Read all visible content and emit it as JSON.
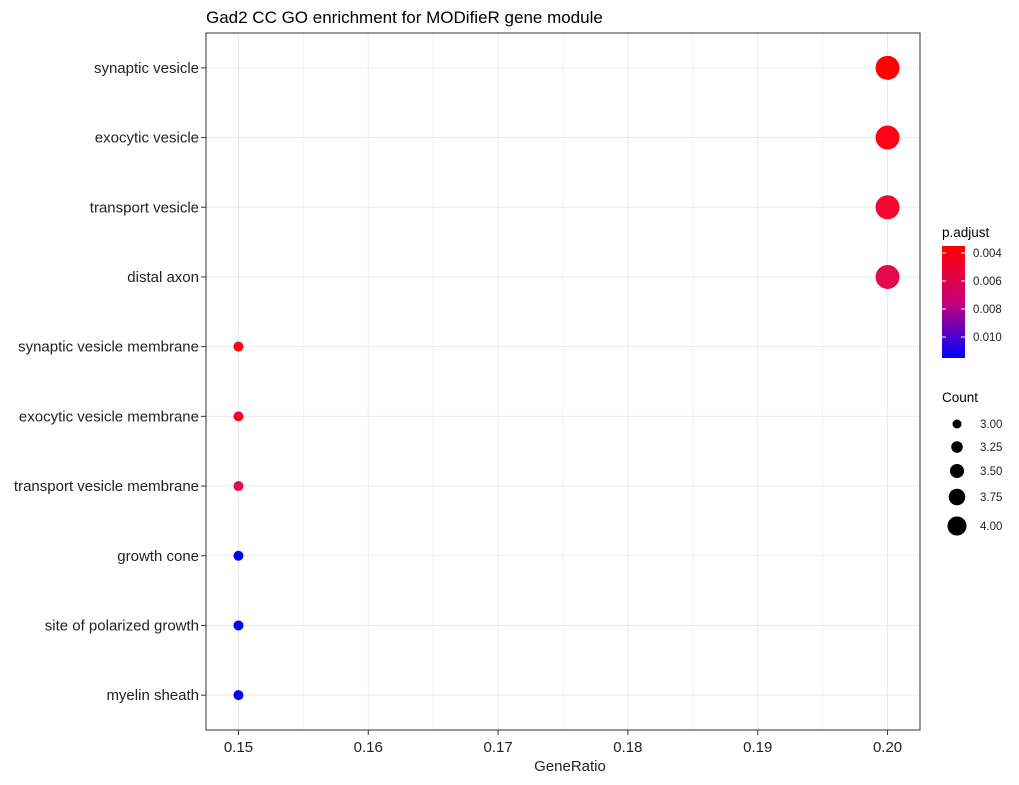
{
  "chart_data": {
    "type": "scatter",
    "title": "Gad2 CC GO enrichment for MODifieR gene module",
    "xlabel": "GeneRatio",
    "ylabel": "",
    "xlim": [
      0.1475,
      0.2025
    ],
    "x_ticks": [
      "0.15",
      "0.16",
      "0.17",
      "0.18",
      "0.19",
      "0.20"
    ],
    "x_tick_values": [
      0.15,
      0.16,
      0.17,
      0.18,
      0.19,
      0.2
    ],
    "grid": true,
    "categories": [
      "synaptic vesicle",
      "exocytic vesicle",
      "transport vesicle",
      "distal axon",
      "synaptic vesicle membrane",
      "exocytic vesicle membrane",
      "transport vesicle membrane",
      "growth cone",
      "site of polarized growth",
      "myelin sheath"
    ],
    "points": [
      {
        "term": "synaptic vesicle",
        "gene_ratio": 0.2,
        "count": 4,
        "p_adjust": 0.0035,
        "color": "#ff0303"
      },
      {
        "term": "exocytic vesicle",
        "gene_ratio": 0.2,
        "count": 4,
        "p_adjust": 0.0038,
        "color": "#fc0415"
      },
      {
        "term": "transport vesicle",
        "gene_ratio": 0.2,
        "count": 4,
        "p_adjust": 0.0042,
        "color": "#f60530"
      },
      {
        "term": "distal axon",
        "gene_ratio": 0.2,
        "count": 4,
        "p_adjust": 0.0048,
        "color": "#e40a4c"
      },
      {
        "term": "synaptic vesicle membrane",
        "gene_ratio": 0.15,
        "count": 3,
        "p_adjust": 0.0038,
        "color": "#fb0418"
      },
      {
        "term": "exocytic vesicle membrane",
        "gene_ratio": 0.15,
        "count": 3,
        "p_adjust": 0.004,
        "color": "#f70528"
      },
      {
        "term": "transport vesicle membrane",
        "gene_ratio": 0.15,
        "count": 3,
        "p_adjust": 0.0047,
        "color": "#e40a4c"
      },
      {
        "term": "growth cone",
        "gene_ratio": 0.15,
        "count": 3,
        "p_adjust": 0.0115,
        "color": "#0000ff"
      },
      {
        "term": "site of polarized growth",
        "gene_ratio": 0.15,
        "count": 3,
        "p_adjust": 0.0115,
        "color": "#0000ff"
      },
      {
        "term": "myelin sheath",
        "gene_ratio": 0.15,
        "count": 3,
        "p_adjust": 0.0115,
        "color": "#0000ff"
      }
    ],
    "legend": {
      "position": "right",
      "color": {
        "title": "p.adjust",
        "labels": [
          "0.004",
          "0.006",
          "0.008",
          "0.010"
        ],
        "label_values": [
          0.004,
          0.006,
          0.008,
          0.01
        ],
        "range": [
          0.0035,
          0.0115
        ],
        "low_color": "#ff0000",
        "high_color": "#0000ff"
      },
      "size": {
        "title": "Count",
        "labels": [
          "3.00",
          "3.25",
          "3.50",
          "3.75",
          "4.00"
        ],
        "values": [
          3.0,
          3.25,
          3.5,
          3.75,
          4.0
        ]
      }
    }
  }
}
